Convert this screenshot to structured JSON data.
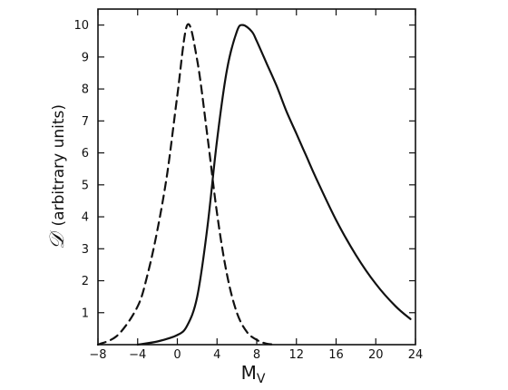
{
  "chart_data": {
    "type": "line",
    "title": "",
    "xlabel": "M",
    "xlabel_sub": "V",
    "ylabel_symbol": "𝒟",
    "ylabel_text": "(arbitrary units)",
    "xlim": [
      -8,
      24
    ],
    "ylim": [
      0,
      10.5
    ],
    "x_ticks": [
      -8,
      -4,
      0,
      4,
      8,
      12,
      16,
      20,
      24
    ],
    "x_tick_labels": [
      "−8",
      "−4",
      "0",
      "4",
      "8",
      "12",
      "16",
      "20",
      "24"
    ],
    "y_ticks": [
      1,
      2,
      3,
      4,
      5,
      6,
      7,
      8,
      9,
      10
    ],
    "y_tick_labels": [
      "1",
      "2",
      "3",
      "4",
      "5",
      "6",
      "7",
      "8",
      "9",
      "10"
    ],
    "grid": false,
    "legend": "none",
    "series": [
      {
        "style": "dashed",
        "x": [
          -8,
          -6,
          -4,
          -3,
          -2,
          -1,
          0,
          1,
          2,
          3,
          4,
          5,
          6,
          7,
          8,
          9,
          10
        ],
        "y": [
          0,
          0.3,
          1.2,
          2.2,
          3.6,
          5.4,
          7.8,
          10.0,
          8.9,
          6.6,
          4.1,
          2.2,
          1.0,
          0.4,
          0.15,
          0.03,
          0
        ]
      },
      {
        "style": "solid",
        "x": [
          -4,
          -2,
          0,
          1,
          2,
          3,
          4,
          5,
          6,
          6.6,
          7.5,
          8,
          9,
          10,
          11,
          12,
          13,
          14,
          16,
          18,
          20,
          22,
          23.5
        ],
        "y": [
          0,
          0.1,
          0.3,
          0.6,
          1.5,
          3.6,
          6.4,
          8.6,
          9.8,
          10.0,
          9.8,
          9.5,
          8.8,
          8.1,
          7.3,
          6.6,
          5.9,
          5.2,
          3.9,
          2.8,
          1.9,
          1.2,
          0.8
        ]
      }
    ]
  }
}
